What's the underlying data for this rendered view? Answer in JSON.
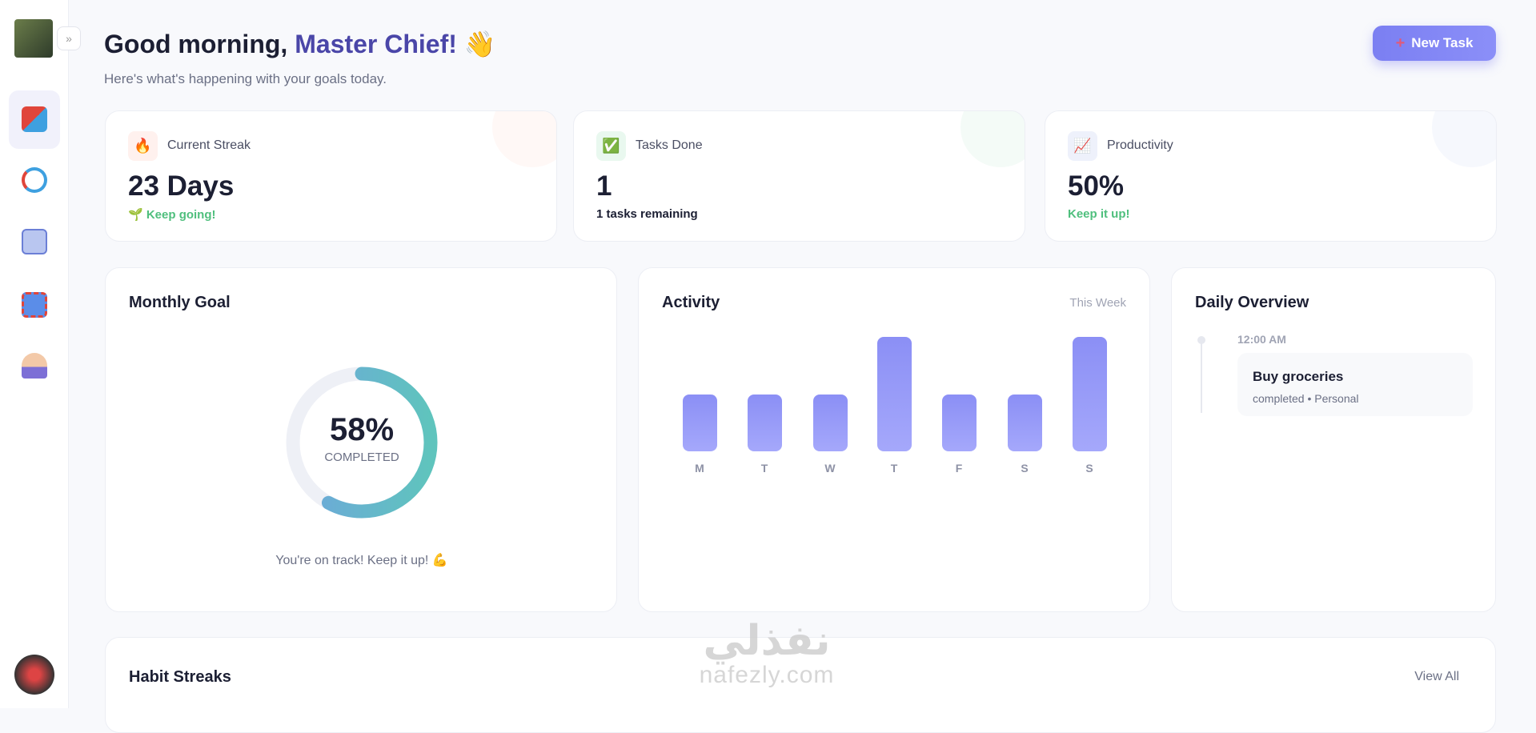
{
  "header": {
    "greeting": "Good morning,",
    "name": "Master Chief!",
    "wave": "👋",
    "subtitle": "Here's what's happening with your goals today.",
    "button": "New Task"
  },
  "stats": [
    {
      "icon": "🔥",
      "label": "Current Streak",
      "value": "23 Days",
      "note": "🌱 Keep going!"
    },
    {
      "icon": "✅",
      "label": "Tasks Done",
      "value": "1",
      "note": "1 tasks remaining"
    },
    {
      "icon": "📈",
      "label": "Productivity",
      "value": "50%",
      "note": "Keep it up!"
    }
  ],
  "monthly_goal": {
    "type": "donut",
    "title": "Monthly Goal",
    "value": 58,
    "value_label": "58%",
    "ylim": [
      0,
      100
    ],
    "caption": "COMPLETED",
    "note": "You're on track! Keep it up! 💪",
    "color": "#5fc4bd"
  },
  "activity": {
    "type": "bar",
    "title": "Activity",
    "range": "This Week",
    "categories": [
      "M",
      "T",
      "W",
      "T",
      "F",
      "S",
      "S"
    ],
    "values": [
      1,
      1,
      1,
      2,
      1,
      1,
      2
    ],
    "ylim": [
      0,
      2
    ],
    "color": "#8b8ff5"
  },
  "daily_overview": {
    "title": "Daily Overview",
    "items": [
      {
        "time": "12:00 AM",
        "title": "Buy groceries",
        "meta": "completed • Personal"
      }
    ]
  },
  "habit_streaks": {
    "title": "Habit Streaks",
    "link": "View All"
  },
  "watermark": {
    "arabic": "نفذلي",
    "latin": "nafezly.com"
  }
}
